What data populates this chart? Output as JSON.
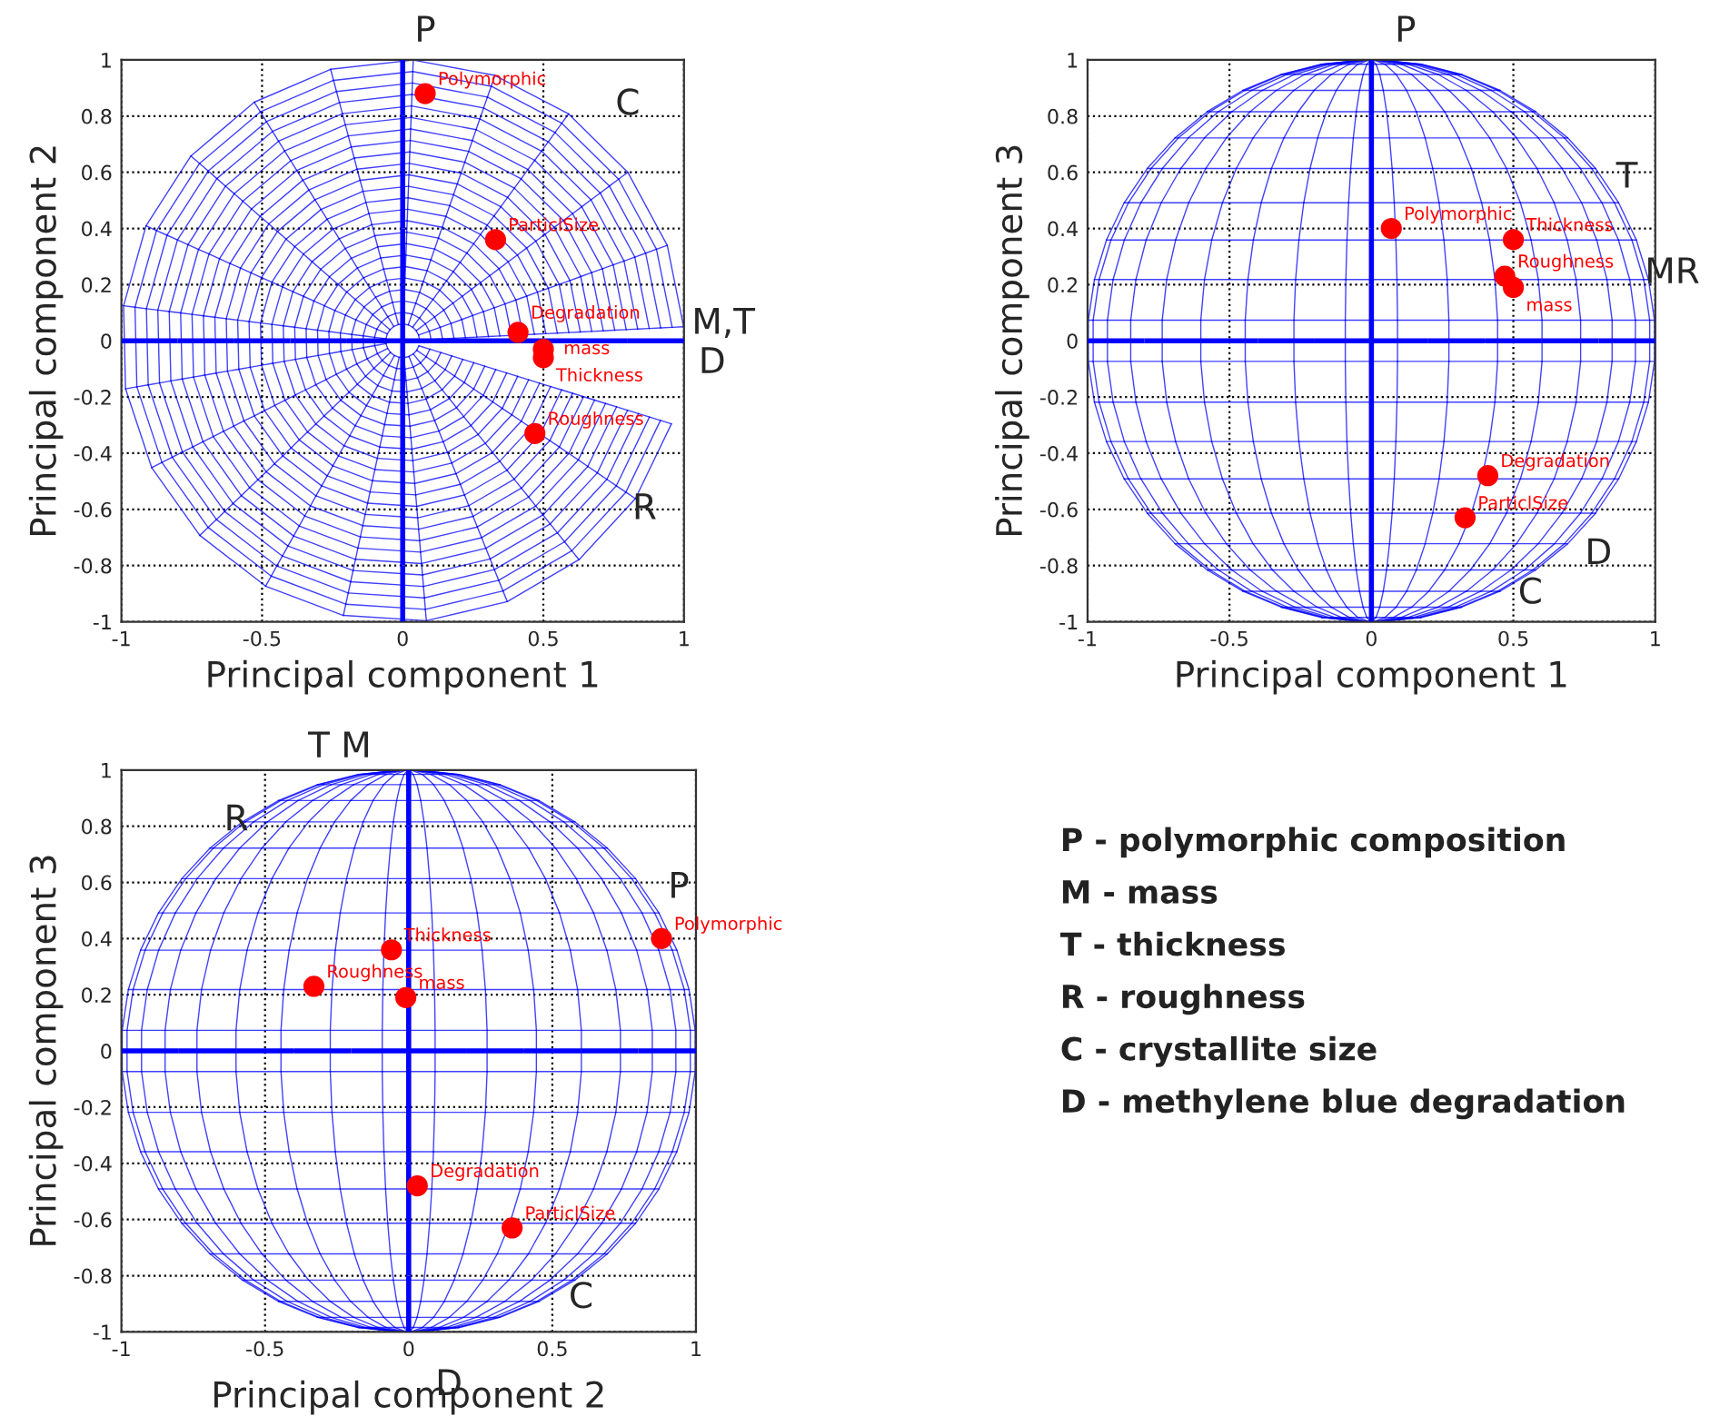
{
  "chart_data": [
    {
      "type": "scatter",
      "xlabel": "Principal component 1",
      "ylabel": "Principal component 2",
      "x": [
        0.08,
        0.33,
        0.41,
        0.5,
        0.5,
        0.47
      ],
      "values": [
        0.88,
        0.36,
        0.03,
        -0.03,
        -0.06,
        -0.33
      ],
      "value_labels": [
        "Polymorphic",
        "ParticlSize",
        "Degradation",
        "mass",
        "Thickness",
        "Roughness"
      ],
      "color": "#ff0000",
      "marker": "circle",
      "xlim": [
        -1,
        1
      ],
      "ylim": [
        -1,
        1
      ],
      "xticks": [
        -1,
        -0.5,
        0,
        0.5,
        1
      ],
      "yticks": [
        -1,
        -0.8,
        -0.6,
        -0.4,
        -0.2,
        0,
        0.2,
        0.4,
        0.6,
        0.8,
        1
      ],
      "grid": true,
      "annotations": [
        "P",
        "C",
        "M,T",
        "D",
        "R"
      ]
    },
    {
      "type": "scatter",
      "xlabel": "Principal component 1",
      "ylabel": "Principal component 3",
      "x": [
        0.07,
        0.5,
        0.47,
        0.5,
        0.41,
        0.33
      ],
      "values": [
        0.4,
        0.36,
        0.23,
        0.19,
        -0.48,
        -0.63
      ],
      "value_labels": [
        "Polymorphic",
        "Thickness",
        "Roughness",
        "mass",
        "Degradation",
        "ParticlSize"
      ],
      "color": "#ff0000",
      "marker": "circle",
      "xlim": [
        -1,
        1
      ],
      "ylim": [
        -1,
        1
      ],
      "xticks": [
        -1,
        -0.5,
        0,
        0.5,
        1
      ],
      "yticks": [
        -1,
        -0.8,
        -0.6,
        -0.4,
        -0.2,
        0,
        0.2,
        0.4,
        0.6,
        0.8,
        1
      ],
      "grid": true,
      "annotations": [
        "P",
        "T",
        "MR",
        "D",
        "C"
      ]
    },
    {
      "type": "scatter",
      "xlabel": "Principal component 2",
      "ylabel": "Principal component 3",
      "x": [
        0.88,
        -0.06,
        -0.33,
        -0.01,
        0.03,
        0.36
      ],
      "values": [
        0.4,
        0.36,
        0.23,
        0.19,
        -0.48,
        -0.63
      ],
      "value_labels": [
        "Polymorphic",
        "Thickness",
        "Roughness",
        "mass",
        "Degradation",
        "ParticlSize"
      ],
      "color": "#ff0000",
      "marker": "circle",
      "xlim": [
        -1,
        1
      ],
      "ylim": [
        -1,
        1
      ],
      "xticks": [
        -1,
        -0.5,
        0,
        0.5,
        1
      ],
      "yticks": [
        -1,
        -0.8,
        -0.6,
        -0.4,
        -0.2,
        0,
        0.2,
        0.4,
        0.6,
        0.8,
        1
      ],
      "grid": true,
      "annotations": [
        "T M",
        "R",
        "P",
        "C",
        "D"
      ]
    },
    {
      "type": "other",
      "annotations": [
        "P - polymorphic composition",
        "M - mass",
        "T - thickness",
        "R - roughness",
        "C - crystallite size",
        "D - methylene blue degradation"
      ]
    }
  ]
}
